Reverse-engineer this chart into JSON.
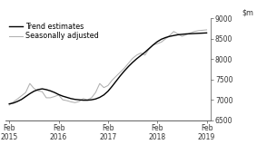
{
  "ylim": [
    6500,
    9000
  ],
  "yticks": [
    6500,
    7000,
    7500,
    8000,
    8500,
    9000
  ],
  "xtick_positions": [
    0,
    12,
    24,
    36,
    48
  ],
  "xtick_labels": [
    "Feb\n2015",
    "Feb\n2016",
    "Feb\n2017",
    "Feb\n2018",
    "Feb\n2019"
  ],
  "legend_entries": [
    "Trend estimates",
    "Seasonally adjusted"
  ],
  "trend_color": "#000000",
  "seasonal_color": "#b0b0b0",
  "trend_lw": 1.0,
  "seasonal_lw": 0.75,
  "xlim": [
    -1,
    49
  ],
  "trend_x": [
    0,
    1,
    2,
    3,
    4,
    5,
    6,
    7,
    8,
    9,
    10,
    11,
    12,
    13,
    14,
    15,
    16,
    17,
    18,
    19,
    20,
    21,
    22,
    23,
    24,
    25,
    26,
    27,
    28,
    29,
    30,
    31,
    32,
    33,
    34,
    35,
    36,
    37,
    38,
    39,
    40,
    41,
    42,
    43,
    44,
    45,
    46,
    47,
    48
  ],
  "trend_y": [
    6900,
    6920,
    6960,
    7010,
    7080,
    7150,
    7210,
    7250,
    7270,
    7250,
    7220,
    7180,
    7130,
    7090,
    7060,
    7030,
    7010,
    7000,
    6990,
    6990,
    7000,
    7020,
    7060,
    7120,
    7210,
    7330,
    7460,
    7590,
    7710,
    7820,
    7920,
    8010,
    8090,
    8170,
    8260,
    8350,
    8430,
    8490,
    8530,
    8560,
    8580,
    8600,
    8610,
    8620,
    8625,
    8630,
    8635,
    8640,
    8645
  ],
  "seasonal_x": [
    0,
    1,
    2,
    3,
    4,
    5,
    6,
    7,
    8,
    9,
    10,
    11,
    12,
    13,
    14,
    15,
    16,
    17,
    18,
    19,
    20,
    21,
    22,
    23,
    24,
    25,
    26,
    27,
    28,
    29,
    30,
    31,
    32,
    33,
    34,
    35,
    36,
    37,
    38,
    39,
    40,
    41,
    42,
    43,
    44,
    45,
    46,
    47,
    48
  ],
  "seasonal_y": [
    6870,
    6950,
    7020,
    7100,
    7180,
    7400,
    7280,
    7220,
    7200,
    7050,
    7050,
    7080,
    7120,
    7000,
    6980,
    6950,
    6930,
    6960,
    7030,
    7000,
    7050,
    7180,
    7400,
    7300,
    7350,
    7480,
    7580,
    7680,
    7780,
    7900,
    8020,
    8100,
    8150,
    8100,
    8250,
    8350,
    8380,
    8420,
    8500,
    8580,
    8680,
    8620,
    8560,
    8600,
    8640,
    8680,
    8700,
    8710,
    8720
  ],
  "background_color": "#ffffff",
  "spine_color": "#555555",
  "tick_color": "#333333",
  "label_fontsize": 5.8,
  "tick_fontsize": 5.5,
  "legend_fontsize": 5.8
}
